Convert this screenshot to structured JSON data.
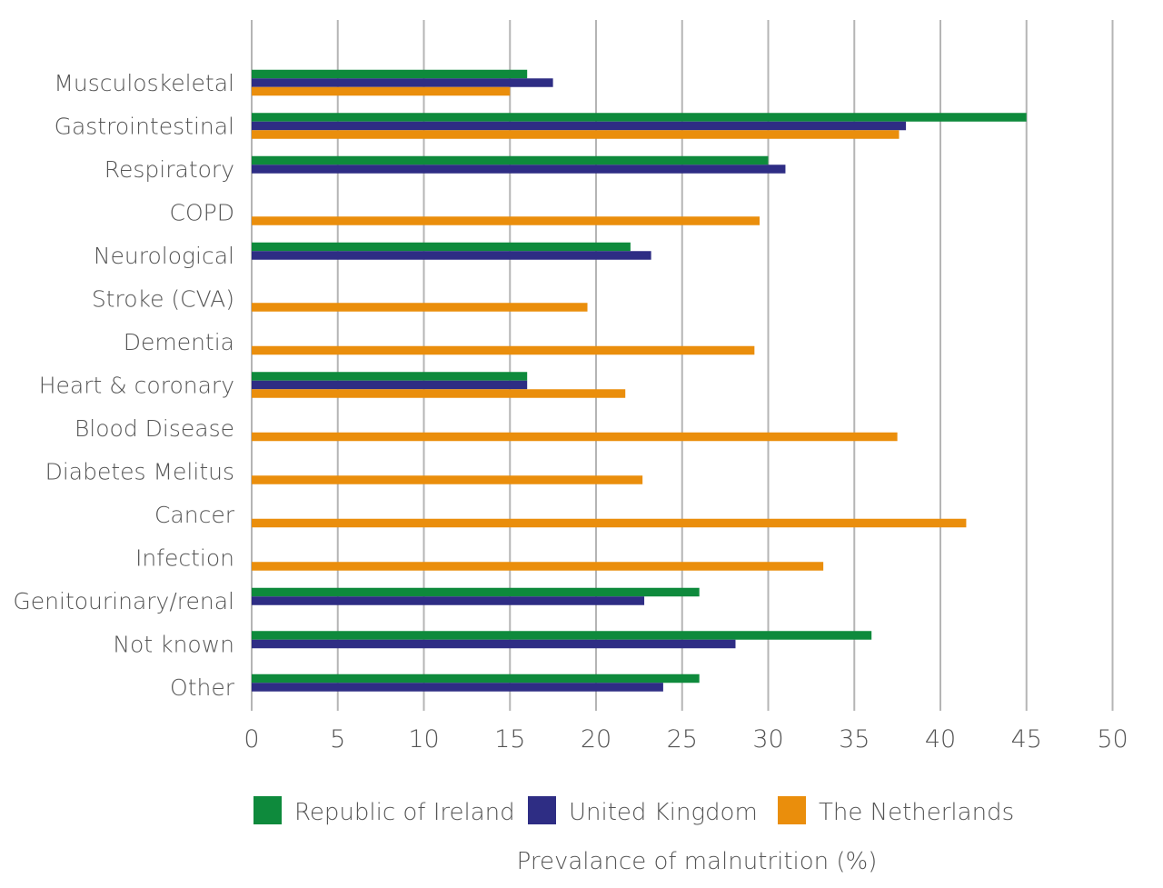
{
  "chart_data": {
    "type": "bar",
    "orientation": "horizontal",
    "categories": [
      "Musculoskeletal",
      "Gastrointestinal",
      "Respiratory",
      "COPD",
      "Neurological",
      "Stroke (CVA)",
      "Dementia",
      "Heart & coronary",
      "Blood Disease",
      "Diabetes Melitus",
      "Cancer",
      "Infection",
      "Genitourinary/renal",
      "Not known",
      "Other"
    ],
    "series": [
      {
        "name": "Republic of Ireland",
        "color": "#0e8a3c",
        "values": [
          16,
          45,
          30,
          null,
          22,
          null,
          null,
          16,
          null,
          null,
          null,
          null,
          26,
          36,
          26
        ]
      },
      {
        "name": "United Kingdom",
        "color": "#2e2d84",
        "values": [
          17.5,
          38,
          31,
          null,
          23.2,
          null,
          null,
          16,
          null,
          null,
          null,
          null,
          22.8,
          28.1,
          23.9
        ]
      },
      {
        "name": "The Netherlands",
        "color": "#ea8e0c",
        "values": [
          15,
          37.6,
          null,
          29.5,
          null,
          19.5,
          29.2,
          21.7,
          37.5,
          22.7,
          41.5,
          33.2,
          null,
          null,
          null
        ]
      }
    ],
    "xticks": [
      "0",
      "5",
      "10",
      "15",
      "20",
      "25",
      "30",
      "35",
      "40",
      "45",
      "50"
    ],
    "xlim": [
      0,
      50
    ],
    "xlabel": "Prevalance of malnutrition (%)",
    "title": "",
    "legend_position": "bottom",
    "grid": "vertical"
  }
}
